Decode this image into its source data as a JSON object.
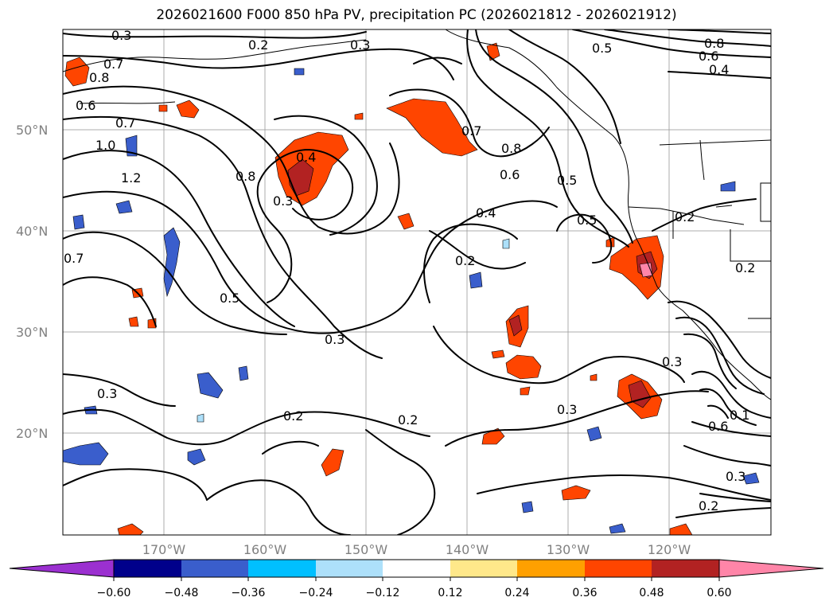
{
  "title": "2026021600 F000 850 hPa PV, precipitation PC (2026021812 - 2026021912)",
  "map": {
    "lat_labels": [
      "50°N",
      "40°N",
      "30°N",
      "20°N"
    ],
    "lon_labels": [
      "170°W",
      "160°W",
      "150°W",
      "140°W",
      "130°W",
      "120°W"
    ],
    "contour_labels": [
      "0.3",
      "0.2",
      "0.3",
      "0.8",
      "0.5",
      "0.6",
      "0.4",
      "0.7",
      "0.8",
      "0.6",
      "0.7",
      "1.0",
      "1.2",
      "0.4",
      "0.8",
      "0.3",
      "0.7",
      "0.8",
      "0.6",
      "0.5",
      "0.4",
      "0.5",
      "0.2",
      "0.2",
      "0.5",
      "0.3",
      "0.3",
      "0.2",
      "0.2",
      "0.3",
      "0.3",
      "0.6",
      "0.1",
      "0.2",
      "0.3",
      "0.2",
      "0.7"
    ]
  },
  "colorbar": {
    "colors": [
      "#9b30d0",
      "#00008b",
      "#3a5ecc",
      "#00bfff",
      "#ade0fa",
      "#ffffff",
      "#ffe88a",
      "#ffa000",
      "#ff4500",
      "#b22222",
      "#ff85a8"
    ],
    "ticks": [
      "−0.60",
      "−0.48",
      "−0.36",
      "−0.24",
      "−0.12",
      "0.12",
      "0.24",
      "0.36",
      "0.48",
      "0.60"
    ]
  }
}
